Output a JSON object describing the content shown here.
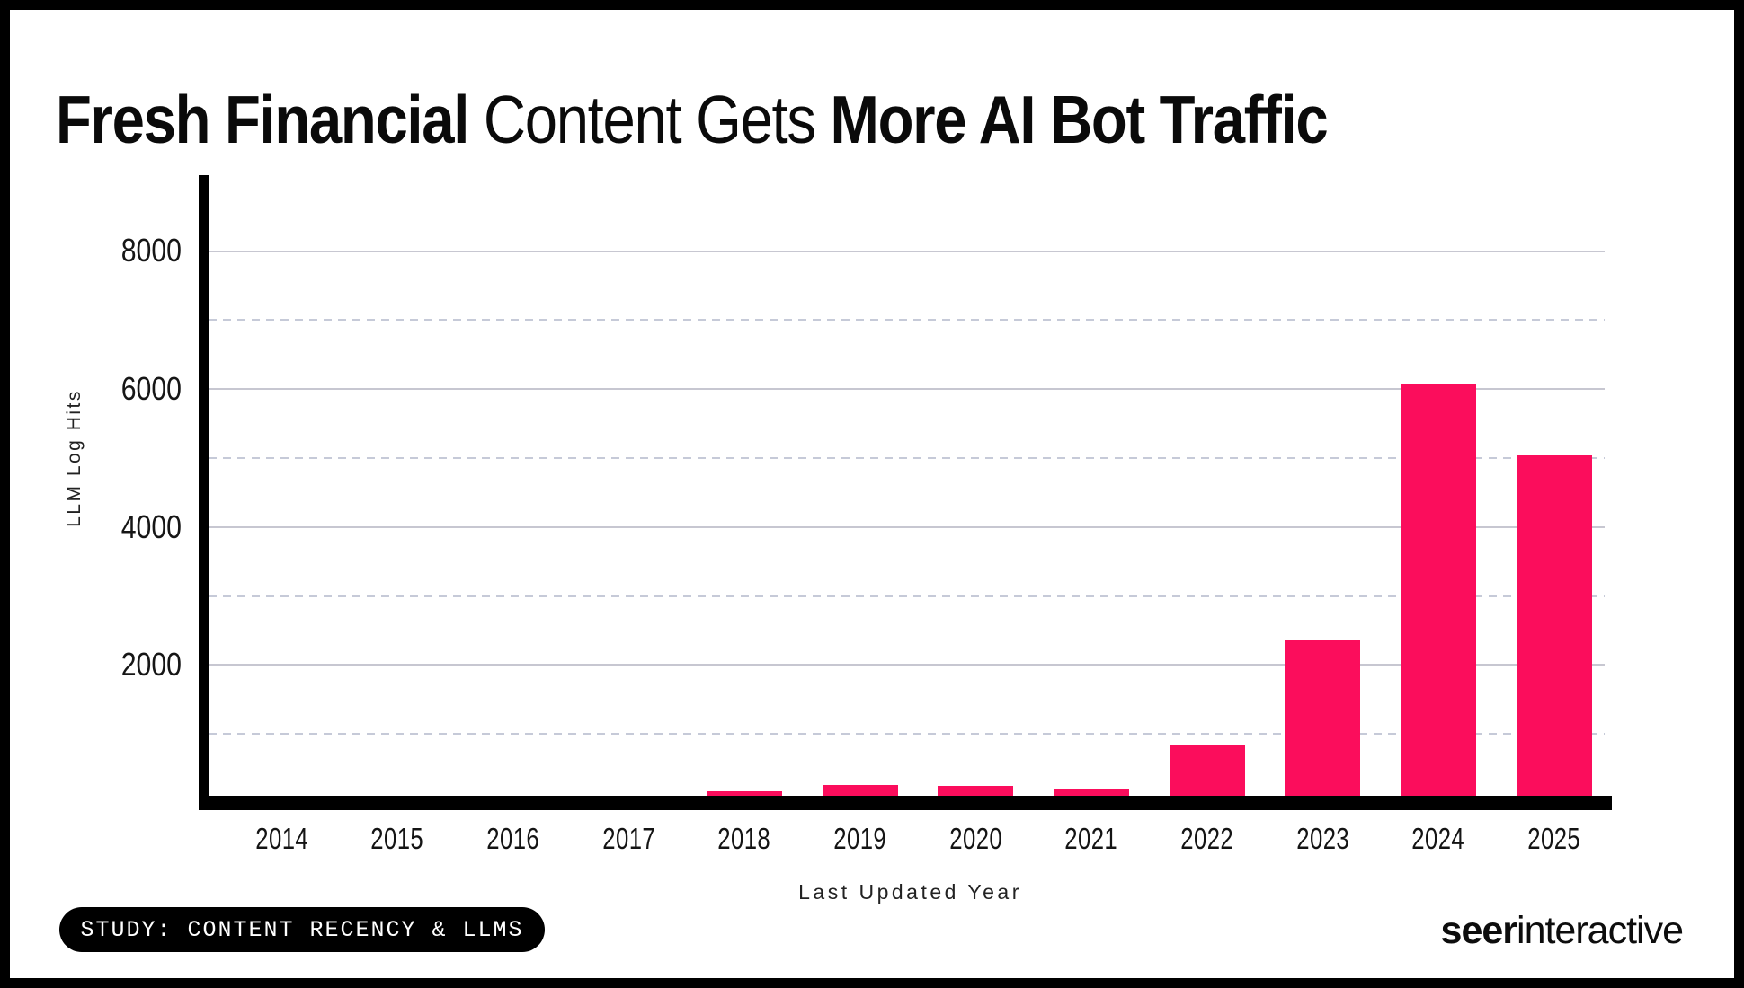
{
  "title": {
    "seg1": "Fresh Financial",
    "seg2": " Content Gets ",
    "seg3": "More AI Bot Traffic"
  },
  "chart_data": {
    "type": "bar",
    "title": "Fresh Financial Content Gets More AI Bot Traffic",
    "xlabel": "Last Updated Year",
    "ylabel": "LLM Log Hits",
    "categories": [
      "2014",
      "2015",
      "2016",
      "2017",
      "2018",
      "2019",
      "2020",
      "2021",
      "2022",
      "2023",
      "2024",
      "2025"
    ],
    "values": [
      0,
      0,
      0,
      0,
      175,
      260,
      245,
      210,
      850,
      2370,
      6080,
      5040
    ],
    "ylim": [
      0,
      9100
    ],
    "ytick_labels": [
      "2000",
      "4000",
      "6000",
      "8000"
    ],
    "major_gridlines": [
      2000,
      4000,
      6000,
      8000
    ],
    "minor_gridlines": [
      1000,
      3000,
      5000,
      7000
    ],
    "grid": "on",
    "legend": "none",
    "bar_color": "#FB0D5C"
  },
  "footer": {
    "study_badge": "STUDY: CONTENT RECENCY & LLMS",
    "logo_bold": "seer",
    "logo_regular": "interactive"
  },
  "colors": {
    "bar": "#FB0D5C",
    "axis": "#000000",
    "grid_solid": "#c7c7d1",
    "grid_dashed": "#c6cad8",
    "background": "#ffffff"
  }
}
